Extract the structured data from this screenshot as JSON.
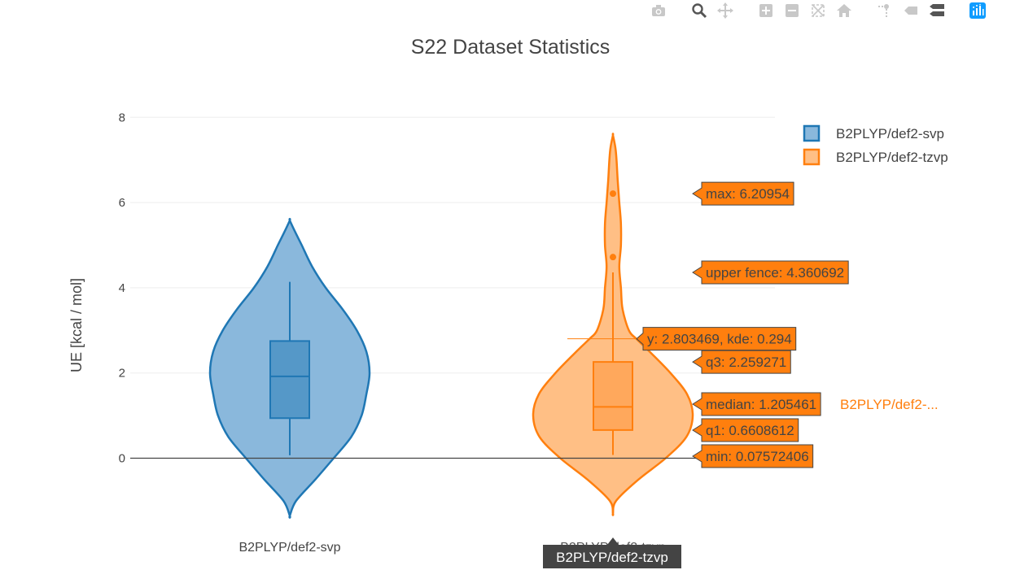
{
  "modebar": {
    "buttons": [
      "camera-icon",
      "zoom-icon",
      "pan-icon",
      "zoom-in-icon",
      "zoom-out-icon",
      "autoscale-icon",
      "home-icon",
      "spike-icon",
      "hover-closest-icon",
      "hover-compare-icon",
      "plotly-logo-icon"
    ]
  },
  "colors": {
    "svp_fill": "#8ab8dc",
    "svp_line": "#1f77b4",
    "svp_box": "#5598c8",
    "tzvp_fill": "#ffbf85",
    "tzvp_line": "#ff7f0e",
    "tzvp_box": "#ffa85c",
    "grid": "#eeeeee",
    "zeroline": "#444444",
    "text": "#444444",
    "hover_label_bg": "#ff7f0e",
    "tooltip_bg": "#444444"
  },
  "chart_data": {
    "type": "violin",
    "title": "S22 Dataset Statistics",
    "xlabel": "",
    "ylabel": "UE [kcal / mol]",
    "ylim": [
      -1.5,
      8.5
    ],
    "yticks": [
      0,
      2,
      4,
      6,
      8
    ],
    "grid": true,
    "legend_position": "top-right",
    "categories": [
      "B2PLYP/def2-svp",
      "B2PLYP/def2-tzvp"
    ],
    "series": [
      {
        "name": "B2PLYP/def2-svp",
        "category": "B2PLYP/def2-svp",
        "box": {
          "lower_whisker": 0.07,
          "q1": 0.94,
          "median": 1.92,
          "q3": 2.75,
          "upper_whisker": 4.14
        },
        "outliers": [],
        "kde": {
          "y": [
            -1.35,
            -1.0,
            -0.5,
            0.0,
            0.5,
            1.0,
            1.5,
            2.0,
            2.5,
            3.0,
            3.5,
            4.0,
            4.5,
            5.0,
            5.3,
            5.58
          ],
          "density": [
            0.0,
            0.08,
            0.32,
            0.55,
            0.77,
            0.9,
            0.96,
            1.0,
            0.96,
            0.84,
            0.66,
            0.45,
            0.28,
            0.15,
            0.07,
            0.0
          ]
        }
      },
      {
        "name": "B2PLYP/def2-tzvp",
        "category": "B2PLYP/def2-tzvp",
        "box": {
          "lower_whisker": 0.07572406,
          "q1": 0.6608612,
          "median": 1.205461,
          "q3": 2.259271,
          "upper_whisker": 4.360692
        },
        "outliers": [
          4.72,
          6.20954
        ],
        "kde": {
          "y": [
            -1.3,
            -1.0,
            -0.5,
            0.0,
            0.5,
            1.0,
            1.5,
            2.0,
            2.5,
            2.8,
            3.0,
            3.5,
            4.0,
            4.5,
            5.0,
            5.5,
            6.0,
            6.5,
            7.0,
            7.3,
            7.58
          ],
          "density": [
            0.0,
            0.04,
            0.32,
            0.66,
            0.92,
            1.0,
            0.93,
            0.72,
            0.46,
            0.294,
            0.2,
            0.12,
            0.1,
            0.08,
            0.1,
            0.1,
            0.08,
            0.06,
            0.045,
            0.03,
            0.0
          ]
        }
      }
    ],
    "hover_labels": [
      {
        "text": "max: 6.20954",
        "y": 6.20954
      },
      {
        "text": "upper fence: 4.360692",
        "y": 4.360692
      },
      {
        "text": "y: 2.803469, kde: 0.294",
        "y": 2.803469,
        "near_curve": true
      },
      {
        "text": "q3: 2.259271",
        "y": 2.259271
      },
      {
        "text": "median: 1.205461",
        "y": 1.205461
      },
      {
        "text": "q1: 0.6608612",
        "y": 0.6608612
      },
      {
        "text": "min: 0.07572406",
        "y": 0.07572406
      }
    ],
    "hover_name": "B2PLYP/def2-...",
    "hover_crossline_y": 2.803469,
    "axis_tooltip": "B2PLYP/def2-tzvp"
  }
}
